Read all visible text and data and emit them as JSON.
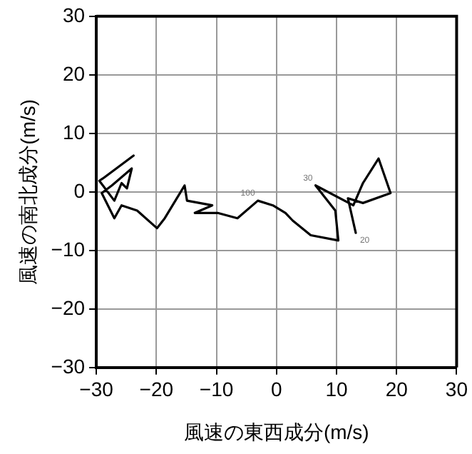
{
  "chart_data": {
    "type": "line",
    "xlabel": "風速の東西成分(m/s)",
    "ylabel": "風速の南北成分(m/s)",
    "x": [
      13.2,
      11.9,
      14.4,
      19,
      17,
      14.4,
      12.8,
      6.5,
      9.8,
      10.3,
      5.7,
      2.7,
      1.5,
      -0.6,
      -3.1,
      -6.5,
      -9.8,
      -13.6,
      -10.7,
      -14.9,
      -15.3,
      -18.6,
      -19.9,
      -23.2,
      -25.8,
      -27,
      -29.1,
      -27.4,
      -24.1,
      -24.9,
      -25.8,
      -27,
      -29.5,
      -28.9,
      -23.8
    ],
    "series": [
      {
        "color": "#000000",
        "values": [
          -7,
          -1.1,
          -1.9,
          -0.2,
          5.7,
          1.5,
          -2.3,
          1.1,
          -3.2,
          -8.3,
          -7.4,
          -4.9,
          -3.6,
          -2.3,
          -1.5,
          -4.5,
          -3.6,
          -3.6,
          -2.3,
          -1.5,
          1.1,
          -4.5,
          -6.2,
          -3.2,
          -2.3,
          -4.5,
          -0.2,
          1.1,
          4,
          0.6,
          1.5,
          -1.5,
          1.9,
          2.3,
          6.2
        ]
      }
    ],
    "xlim": [
      -30,
      30
    ],
    "ylim": [
      -30,
      30
    ],
    "xticks": [
      {
        "value": -30,
        "label": "−30"
      },
      {
        "value": -20,
        "label": "−20"
      },
      {
        "value": -10,
        "label": "−10"
      },
      0,
      10,
      20,
      30
    ],
    "yticks": [
      {
        "value": -30,
        "label": "−30"
      },
      {
        "value": -20,
        "label": "−20"
      },
      {
        "value": -10,
        "label": "−10"
      },
      0,
      10,
      20,
      30
    ],
    "grid": true,
    "legend": false,
    "marker": "none",
    "line_style": "solid",
    "annotations": [
      {
        "text": "100",
        "x": -3.1,
        "y": -1.5
      },
      {
        "text": "30",
        "x": 6.5,
        "y": 1.1
      },
      {
        "text": "20",
        "x": 13.2,
        "y": -7
      }
    ]
  }
}
